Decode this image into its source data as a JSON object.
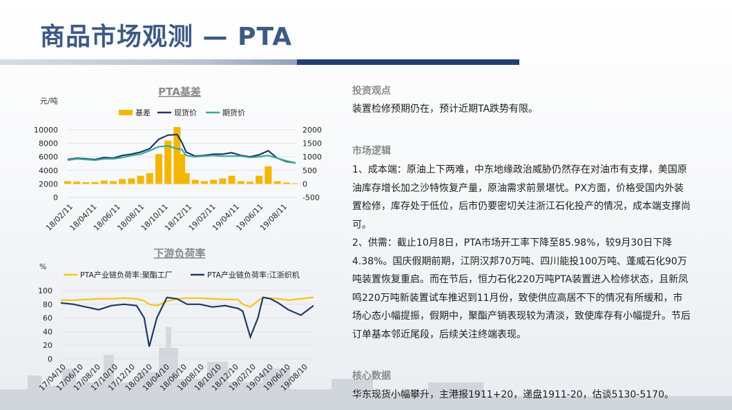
{
  "page": {
    "title": "商品市场观测 — PTA"
  },
  "colors": {
    "basis": "#f2b705",
    "spot": "#1f3864",
    "futures": "#3aa89b",
    "load_poly": "#f5c518",
    "load_weave": "#1f3864",
    "title": "#3c5a84"
  },
  "chart_data": [
    {
      "type": "line",
      "title": "PTA基差",
      "ylabel_left": "元/吨",
      "ylim_left": [
        0,
        10000
      ],
      "yticks_left": [
        "10000",
        "8000",
        "6000",
        "4000",
        "2000",
        "0"
      ],
      "ylim_right": [
        -500,
        2000
      ],
      "yticks_right": [
        "2000",
        "1500",
        "1000",
        "500",
        "0",
        "-500"
      ],
      "xticks": [
        "18/02/11",
        "18/04/11",
        "18/06/11",
        "18/08/11",
        "18/10/11",
        "18/12/11",
        "19/02/11",
        "19/04/11",
        "19/06/11",
        "19/08/11"
      ],
      "legend": [
        "基差",
        "现货价",
        "期货价"
      ],
      "x": [
        0,
        0.04,
        0.08,
        0.12,
        0.16,
        0.2,
        0.24,
        0.28,
        0.32,
        0.36,
        0.4,
        0.44,
        0.48,
        0.5,
        0.52,
        0.56,
        0.6,
        0.64,
        0.68,
        0.72,
        0.76,
        0.8,
        0.84,
        0.88,
        0.92,
        0.96,
        1
      ],
      "series": [
        {
          "name": "现货价",
          "axis": "left",
          "values": [
            5600,
            5800,
            5700,
            5600,
            5900,
            5800,
            6200,
            6400,
            6700,
            7200,
            8600,
            9200,
            9300,
            8200,
            6700,
            6100,
            6200,
            6400,
            6400,
            6600,
            6200,
            6000,
            6300,
            6900,
            5800,
            5300,
            5100
          ]
        },
        {
          "name": "期货价",
          "axis": "left",
          "values": [
            5500,
            5700,
            5600,
            5500,
            5700,
            5700,
            5900,
            6200,
            6400,
            6900,
            7500,
            7600,
            7200,
            7100,
            6200,
            6000,
            6100,
            6200,
            6100,
            6100,
            6100,
            5900,
            6000,
            6200,
            5800,
            5400,
            5100
          ]
        },
        {
          "name": "基差",
          "axis": "right",
          "type": "bar",
          "values": [
            100,
            80,
            60,
            70,
            120,
            100,
            180,
            200,
            300,
            400,
            1100,
            1600,
            2100,
            1100,
            400,
            150,
            100,
            150,
            200,
            300,
            100,
            80,
            300,
            650,
            100,
            50,
            20
          ]
        }
      ]
    },
    {
      "type": "line",
      "title": "下游负荷率",
      "ylabel_left": "%",
      "ylim": [
        0,
        100
      ],
      "yticks": [
        "100",
        "80",
        "60",
        "40",
        "20",
        "0"
      ],
      "xticks": [
        "17/04/10",
        "17/06/10",
        "17/08/10",
        "17/10/10",
        "17/12/10",
        "18/02/10",
        "18/04/10",
        "18/06/10",
        "18/08/10",
        "18/10/10",
        "18/12/10",
        "19/02/10",
        "19/04/10",
        "19/06/10",
        "19/08/10"
      ],
      "legend": [
        "PTA产业链负荷率:聚酯工厂",
        "PTA产业链负荷率:江浙织机"
      ],
      "x": [
        0,
        0.05,
        0.1,
        0.15,
        0.2,
        0.25,
        0.3,
        0.33,
        0.35,
        0.38,
        0.42,
        0.46,
        0.5,
        0.55,
        0.6,
        0.65,
        0.7,
        0.72,
        0.75,
        0.78,
        0.8,
        0.83,
        0.86,
        0.9,
        0.95,
        1
      ],
      "series": [
        {
          "name": "PTA产业链负荷率:聚酯工厂",
          "values": [
            86,
            86,
            87,
            88,
            88,
            89,
            88,
            85,
            80,
            78,
            84,
            88,
            89,
            89,
            88,
            87,
            87,
            80,
            76,
            85,
            90,
            89,
            88,
            86,
            88,
            90
          ]
        },
        {
          "name": "PTA产业链负荷率:江浙织机",
          "values": [
            82,
            80,
            76,
            72,
            78,
            80,
            78,
            60,
            18,
            60,
            90,
            88,
            80,
            80,
            76,
            78,
            74,
            70,
            32,
            60,
            90,
            88,
            82,
            72,
            64,
            78
          ]
        }
      ]
    }
  ],
  "sections": {
    "view_heading": "投资观点",
    "view_text": "装置检修预期仍在，预计近期TA跌势有限。",
    "logic_heading": "市场逻辑",
    "logic_p1": "1、成本端：原油上下两难，中东地缘政治威胁仍然存在对油市有支撑，美国原油库存增长加之沙特恢复产量，原油需求前景堪忧。PX方面，价格受国内外装置检修，库存处于低位，后市仍要密切关注浙江石化投产的情况，成本端支撑尚可。",
    "logic_p2": "2、供需：截止10月8日，PTA市场开工率下降至85.98%，较9月30日下降4.38%。国庆假期前期，江阴汉邦70万吨、四川能投100万吨、蓬威石化90万吨装置恢复重启。而在节后，恒力石化220万吨PTA装置进入检修状态，且新凤鸣220万吨新装置试车推迟到11月份，致使供应高居不下的情况有所缓和，市场心态小幅提振，假期中，聚酯产销表现较为清淡，致使库存有小幅提升。节后订单基本邻近尾段，后续关注终端表现。",
    "core_heading": "核心数据",
    "core_text": "华东现货小幅攀升，主港报1911+20，递盘1911-20，估谈5130-5170。"
  }
}
